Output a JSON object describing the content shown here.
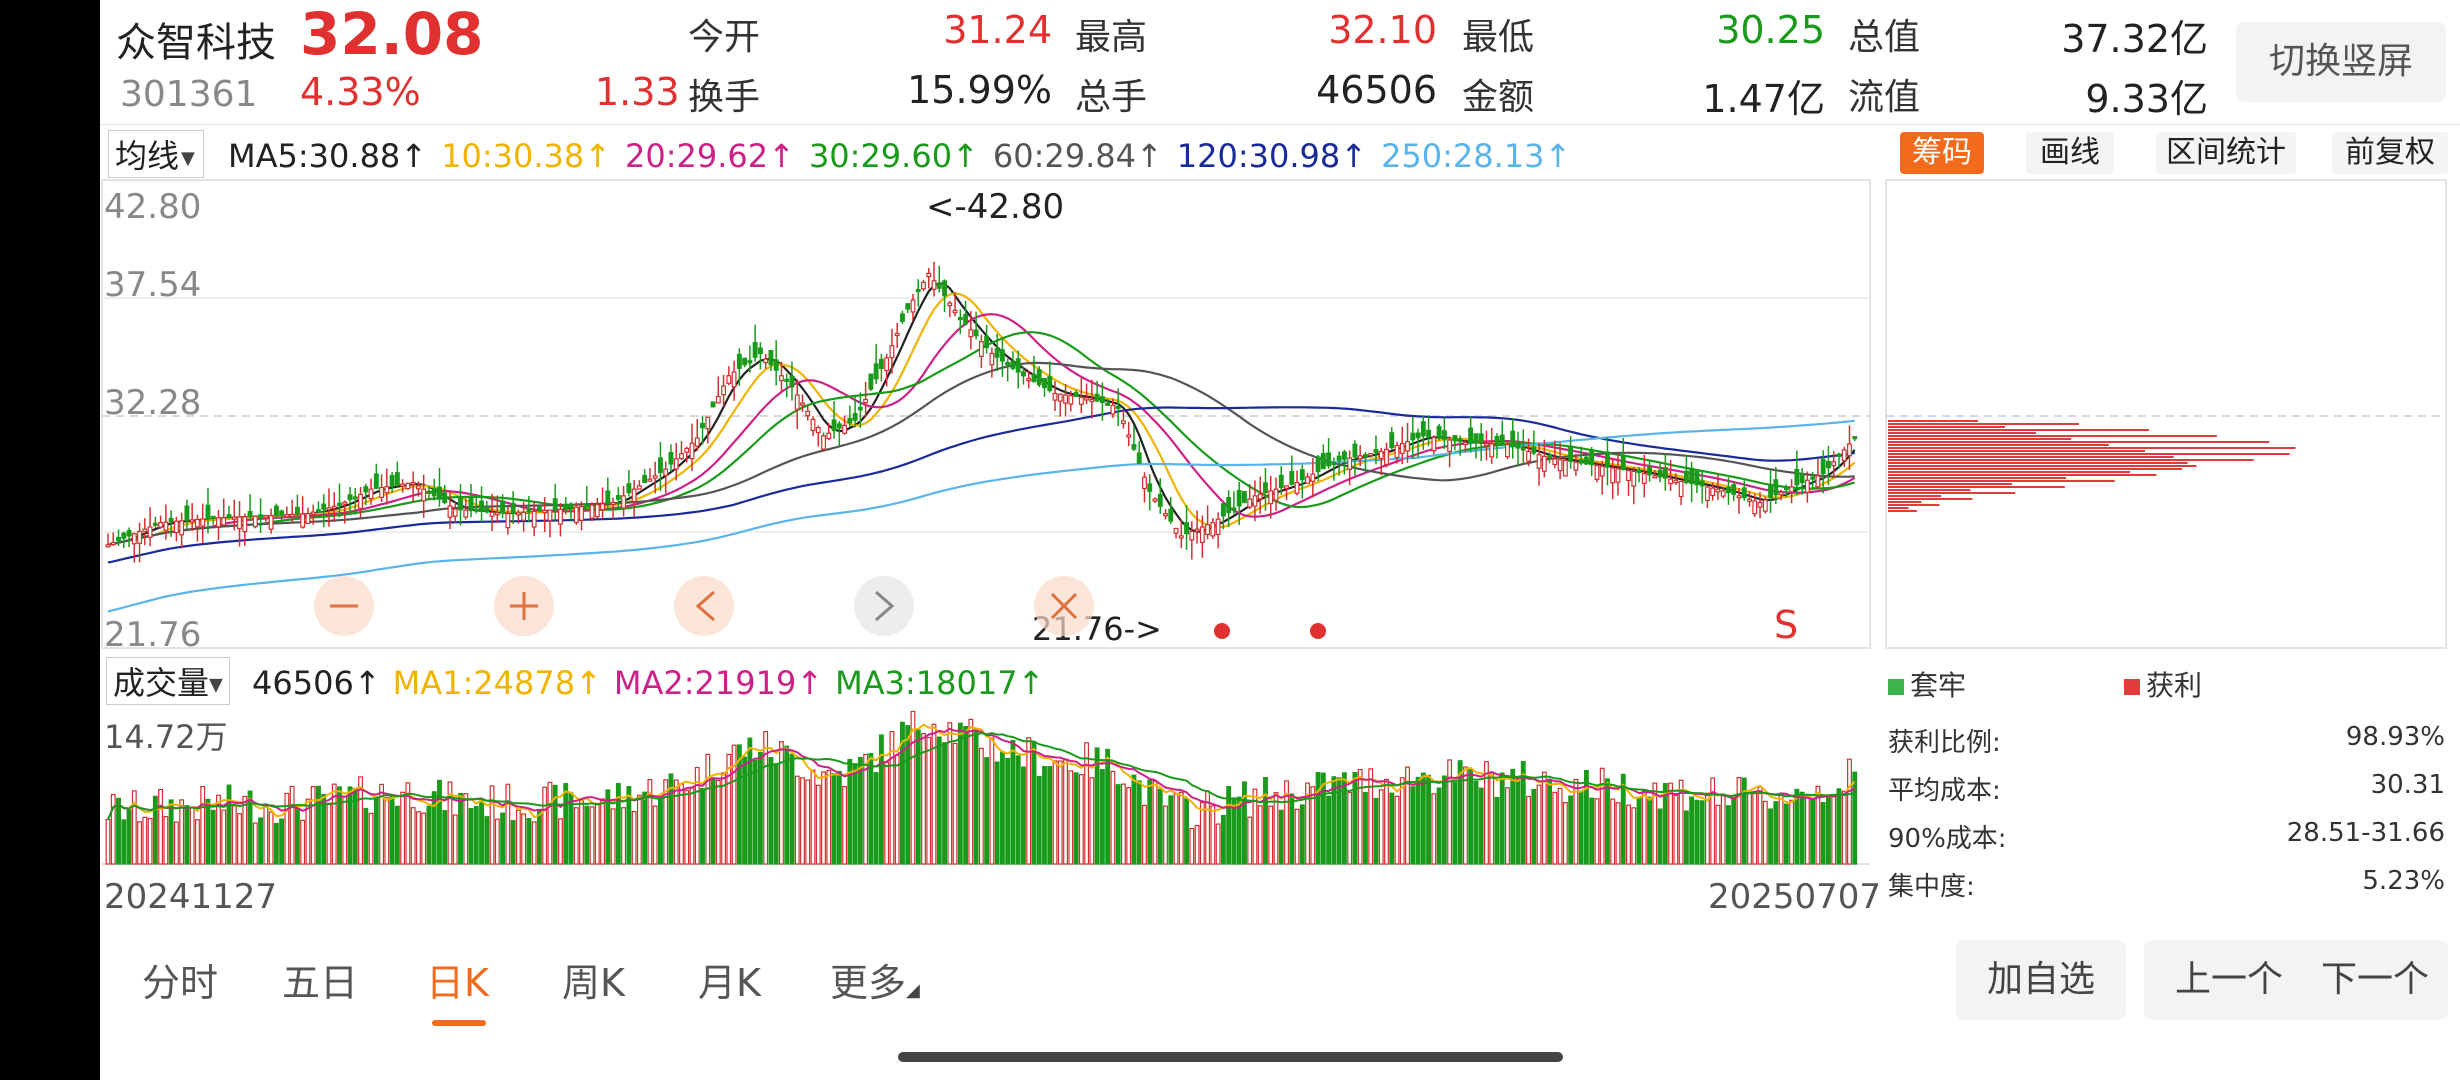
{
  "header": {
    "name": "众智科技",
    "price": "32.08",
    "code": "301361",
    "pct": "4.33%",
    "change": "1.33",
    "quotes": [
      {
        "label": "今开",
        "value": "31.24",
        "color": "red"
      },
      {
        "label": "最高",
        "value": "32.10",
        "color": "red"
      },
      {
        "label": "最低",
        "value": "30.25",
        "color": "green"
      },
      {
        "label": "总值",
        "value": "37.32亿",
        "color": "black"
      },
      {
        "label": "换手",
        "value": "15.99%",
        "color": "black"
      },
      {
        "label": "总手",
        "value": "46506",
        "color": "black"
      },
      {
        "label": "金额",
        "value": "1.47亿",
        "color": "black"
      },
      {
        "label": "流值",
        "value": "9.33亿",
        "color": "black"
      }
    ],
    "switch_label": "切换竖屏"
  },
  "ma_bar": {
    "dropdown": "均线",
    "items": [
      {
        "text": "MA5:30.88",
        "color": "#222222"
      },
      {
        "text": "10:30.38",
        "color": "#f0b400"
      },
      {
        "text": "20:29.62",
        "color": "#cc2288"
      },
      {
        "text": "30:29.60",
        "color": "#1a9a1a"
      },
      {
        "text": "60:29.84",
        "color": "#555555"
      },
      {
        "text": "120:30.98",
        "color": "#1a2a9a"
      },
      {
        "text": "250:28.13",
        "color": "#5ab4ea"
      }
    ],
    "arrow": "↑"
  },
  "right_tabs": [
    "筹码",
    "画线",
    "区间统计",
    "前复权"
  ],
  "vol_bar": {
    "dropdown": "成交量",
    "items": [
      {
        "text": "46506",
        "color": "#222222"
      },
      {
        "text": "MA1:24878",
        "color": "#f0b400"
      },
      {
        "text": "MA2:21919",
        "color": "#cc2288"
      },
      {
        "text": "MA3:18017",
        "color": "#1a9a1a"
      }
    ],
    "arrow": "↑"
  },
  "chip": {
    "legend": [
      {
        "label": "套牢",
        "color": "#3cb44b"
      },
      {
        "label": "获利",
        "color": "#e03c3c"
      }
    ],
    "stats": [
      {
        "label": "获利比例:",
        "value": "98.93%"
      },
      {
        "label": "平均成本:",
        "value": "30.31"
      },
      {
        "label": "90%成本:",
        "value": "28.51-31.66"
      },
      {
        "label": "集中度:",
        "value": "5.23%"
      }
    ]
  },
  "nav": {
    "tabs": [
      "分时",
      "五日",
      "日K",
      "周K",
      "月K",
      "更多"
    ],
    "buttons": [
      "加自选",
      "上一个",
      "下一个"
    ]
  },
  "chart_data": {
    "type": "candlestick",
    "date_start": "20241127",
    "date_end": "20250707",
    "y_axis_labels": [
      "42.80",
      "37.54",
      "32.28",
      "21.76"
    ],
    "ylim": [
      21.76,
      42.8
    ],
    "high_marker": "<-42.80",
    "low_marker": "21.76->",
    "signal_label": "S",
    "volume_axis_label": "14.72万",
    "volume_max": 147200
  }
}
